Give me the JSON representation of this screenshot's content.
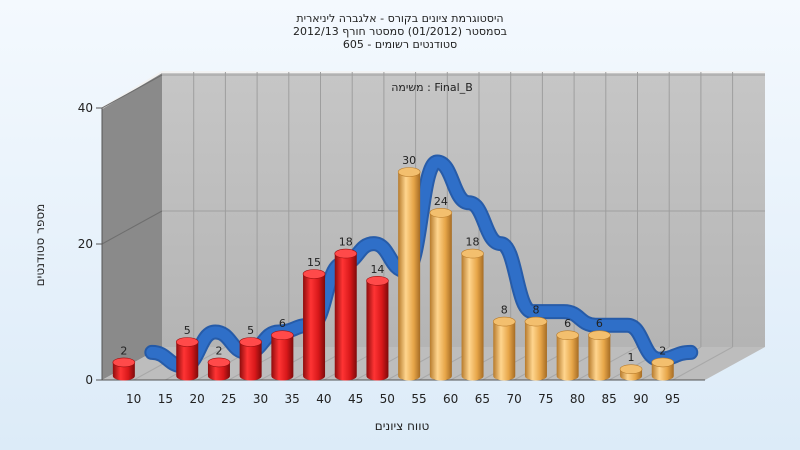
{
  "chart_data": {
    "type": "bar",
    "title_lines": [
      "היסטוגרמת ציונים בקורס - אלגברה ליניארית",
      "בסמסטר  (01/2012)  סמסטר חורף 2012/13",
      "605 - סטודנטים רשומים"
    ],
    "inner_label": "משימה : Final_B",
    "xlabel": "טווח ציונים",
    "ylabel": "מספר סטודנטים",
    "x_ticks": [
      "10",
      "15",
      "20",
      "25",
      "30",
      "35",
      "40",
      "45",
      "50",
      "55",
      "60",
      "65",
      "70",
      "75",
      "80",
      "85",
      "90",
      "95"
    ],
    "y_ticks": [
      "0",
      "20",
      "40"
    ],
    "ylim": [
      0,
      40
    ],
    "categories": [
      10,
      15,
      20,
      25,
      30,
      35,
      40,
      45,
      50,
      55,
      60,
      65,
      70,
      75,
      80,
      85,
      90,
      95
    ],
    "values": [
      2,
      null,
      5,
      2,
      5,
      6,
      15,
      18,
      14,
      30,
      24,
      18,
      8,
      8,
      6,
      6,
      1,
      2
    ],
    "value_labels": [
      "2",
      "",
      "5",
      "2",
      "5",
      "6",
      "15",
      "18",
      "14",
      "30",
      "24",
      "18",
      "8",
      "8",
      "6",
      "6",
      "1",
      "2"
    ],
    "bar_colors": {
      "red": "#d7191c",
      "gold": "#e8a84b"
    },
    "red_until_grade": 50,
    "curve_color": "#2f6fc8",
    "grid": true
  }
}
